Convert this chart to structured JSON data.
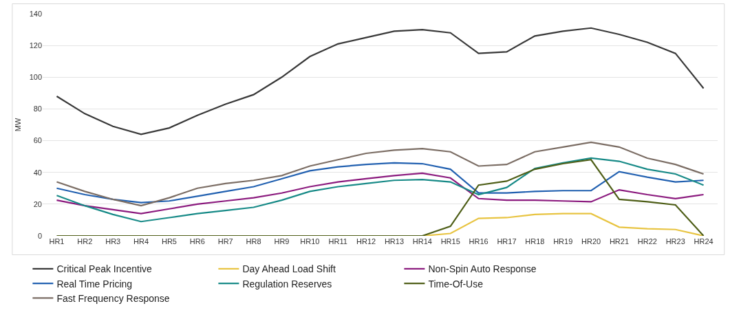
{
  "chart_data": {
    "type": "line",
    "ylabel": "MW",
    "categories": [
      "HR1",
      "HR2",
      "HR3",
      "HR4",
      "HR5",
      "HR6",
      "HR7",
      "HR8",
      "HR9",
      "HR10",
      "HR11",
      "HR12",
      "HR13",
      "HR14",
      "HR15",
      "HR16",
      "HR17",
      "HR18",
      "HR19",
      "HR20",
      "HR21",
      "HR22",
      "HR23",
      "HR24"
    ],
    "series": [
      {
        "name": "Critical Peak Incentive",
        "color": "#383838",
        "values": [
          88,
          77,
          69,
          64,
          68,
          76,
          83,
          89,
          100,
          113,
          121,
          125,
          129,
          130,
          128,
          115,
          116,
          126,
          129,
          131,
          127,
          122,
          115,
          93
        ]
      },
      {
        "name": "Day Ahead Load Shift",
        "color": "#e8c441",
        "values": [
          null,
          null,
          null,
          null,
          null,
          null,
          null,
          null,
          null,
          null,
          null,
          null,
          null,
          0,
          1.5,
          11,
          11.5,
          13.5,
          14,
          14,
          5.5,
          4.5,
          4,
          0
        ]
      },
      {
        "name": "Non-Spin Auto Response",
        "color": "#8b1a7e",
        "values": [
          22.5,
          19,
          16.5,
          14,
          17,
          20,
          22,
          24,
          27,
          31,
          34,
          36,
          38,
          39.5,
          36.5,
          23.5,
          22.5,
          22.5,
          22,
          21.5,
          29,
          26,
          23.5,
          26
        ]
      },
      {
        "name": "Real Time Pricing",
        "color": "#2160b0",
        "values": [
          30,
          26,
          23,
          21,
          22,
          25,
          28,
          31,
          36,
          41,
          43.5,
          45,
          46,
          45.5,
          42,
          27,
          27,
          28,
          28.5,
          28.5,
          40.5,
          37,
          34,
          35
        ]
      },
      {
        "name": "Regulation Reserves",
        "color": "#178a87",
        "values": [
          25.5,
          19,
          13.5,
          9,
          11.5,
          14,
          16,
          18,
          22.5,
          28,
          31,
          33,
          35,
          35.5,
          34,
          26,
          30.5,
          42.5,
          46,
          49,
          47,
          42,
          39,
          32
        ]
      },
      {
        "name": "Time-Of-Use",
        "color": "#4e5e17",
        "values": [
          0,
          0,
          0,
          0,
          0,
          0,
          0,
          0,
          0,
          0,
          0,
          0,
          0,
          0,
          6,
          32,
          34.5,
          42,
          45.5,
          48,
          23,
          21.5,
          19.5,
          0
        ]
      },
      {
        "name": "Fast Frequency Response",
        "color": "#7b6d64",
        "values": [
          34,
          28,
          23,
          19,
          24,
          30,
          33,
          35,
          38,
          44,
          48,
          52,
          54,
          55,
          53,
          44,
          45,
          53,
          56,
          59,
          56,
          49,
          45,
          39
        ]
      }
    ],
    "ylim": [
      0,
      140
    ],
    "yticks": [
      0,
      20,
      40,
      60,
      80,
      100,
      120,
      140
    ],
    "grid": "y",
    "legend": "bottom",
    "marker": "none",
    "line_style": "solid"
  }
}
